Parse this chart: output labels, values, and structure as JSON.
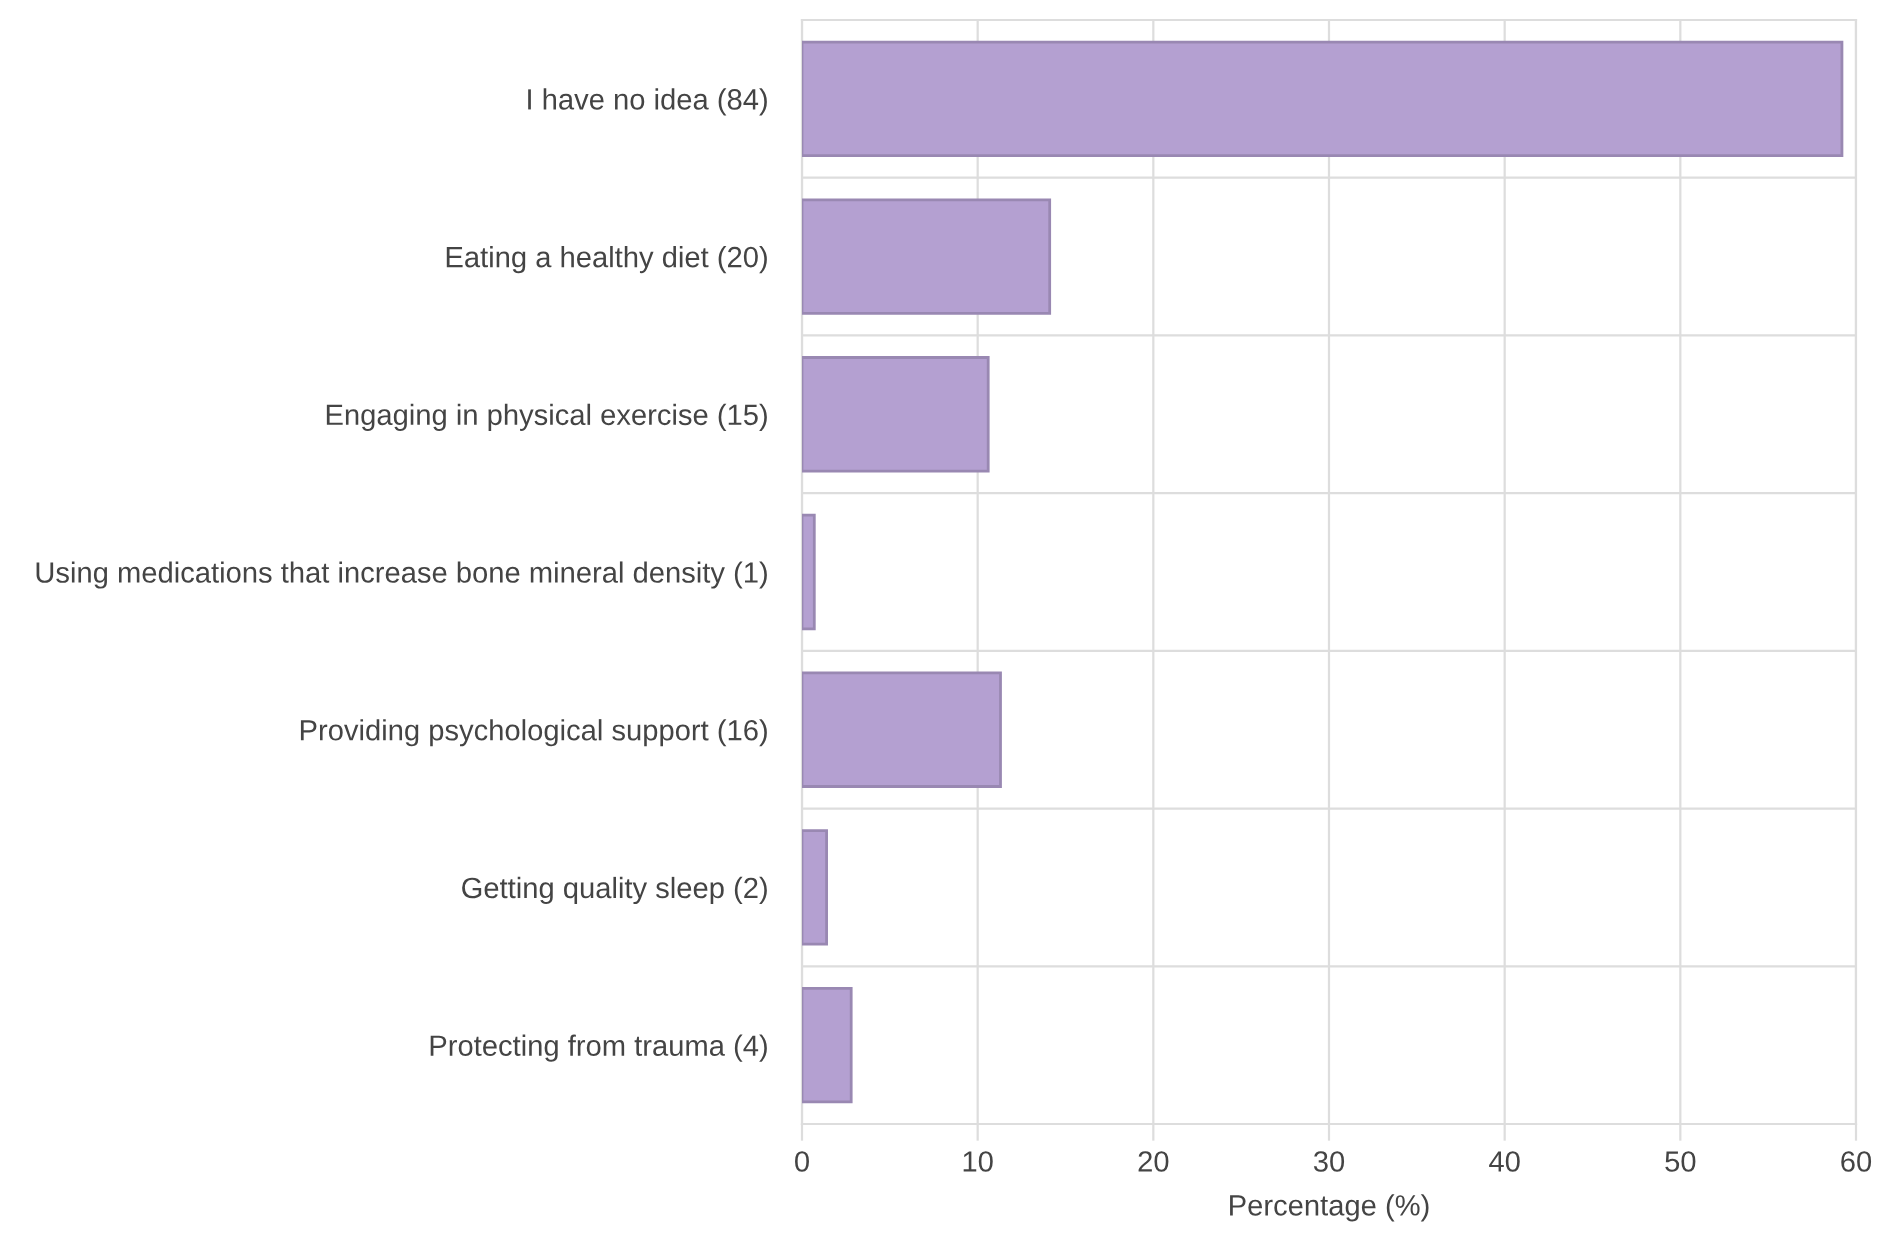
{
  "chart_data": {
    "type": "bar",
    "orientation": "horizontal",
    "categories": [
      "I have no idea (84)",
      "Eating a healthy diet (20)",
      "Engaging in physical exercise (15)",
      "Using medications that increase bone mineral density (1)",
      "Providing psychological support (16)",
      "Getting quality sleep (2)",
      "Protecting from trauma (4)"
    ],
    "values": [
      59.2,
      14.1,
      10.6,
      0.7,
      11.3,
      1.4,
      2.8
    ],
    "color": "#b4a0d1",
    "xlim": [
      0,
      60
    ],
    "xticks": [
      0,
      10,
      20,
      30,
      40,
      50,
      60
    ],
    "xlabel": "Percentage (%)",
    "grid": true,
    "legend": false
  }
}
